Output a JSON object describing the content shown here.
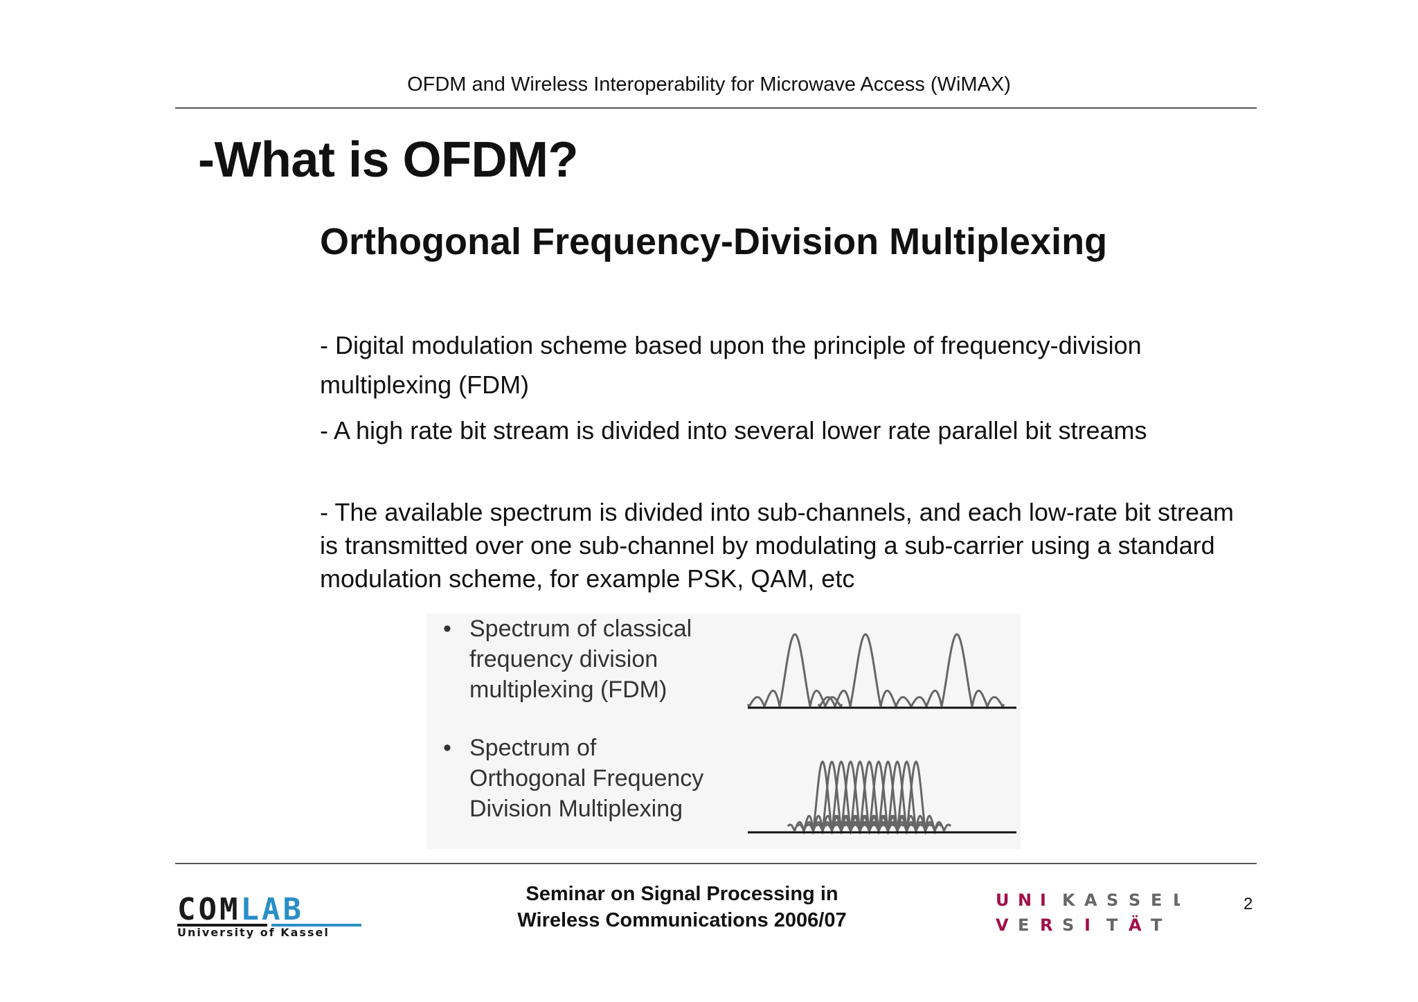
{
  "header": {
    "running_title": "OFDM and  Wireless Interoperability for Microwave Access (WiMAX)"
  },
  "slide": {
    "title": "-What is OFDM?",
    "subtitle": "Orthogonal Frequency-Division Multiplexing",
    "paragraphs": [
      "- Digital modulation scheme based upon the principle of frequency-division multiplexing (FDM)",
      "- A high rate bit stream is divided into several lower rate parallel bit streams",
      "- The available spectrum is divided into sub-channels, and each low-rate bit stream is transmitted over one sub-channel by  modulating a sub-carrier using a standard modulation scheme, for example PSK, QAM, etc"
    ]
  },
  "figure": {
    "items": [
      {
        "bullet": "•",
        "text": "Spectrum of classical\nfrequency division\nmultiplexing (FDM)"
      },
      {
        "bullet": "•",
        "text": "Spectrum of\nOrthogonal Frequency\nDivision Multiplexing"
      }
    ],
    "curve_color": "#666666"
  },
  "footer": {
    "seminar": "Seminar on Signal Processing in\nWireless Communications 2006/07",
    "page_number": "2",
    "comlab_logo": {
      "word_dark": "COM",
      "word_blue": "LAB",
      "tagline": "University of Kassel",
      "dark_color": "#1a1a1a",
      "blue_color": "#2a8fc6"
    },
    "kassel_logo": {
      "row1": [
        "U",
        "N",
        "I",
        "K",
        "A",
        "S",
        "S",
        "E",
        "L"
      ],
      "row2": [
        "V",
        "E",
        "R",
        "S",
        "I",
        "T",
        "Ä",
        "T"
      ],
      "accent_color": "#a0104a",
      "grey_color": "#666666"
    }
  }
}
